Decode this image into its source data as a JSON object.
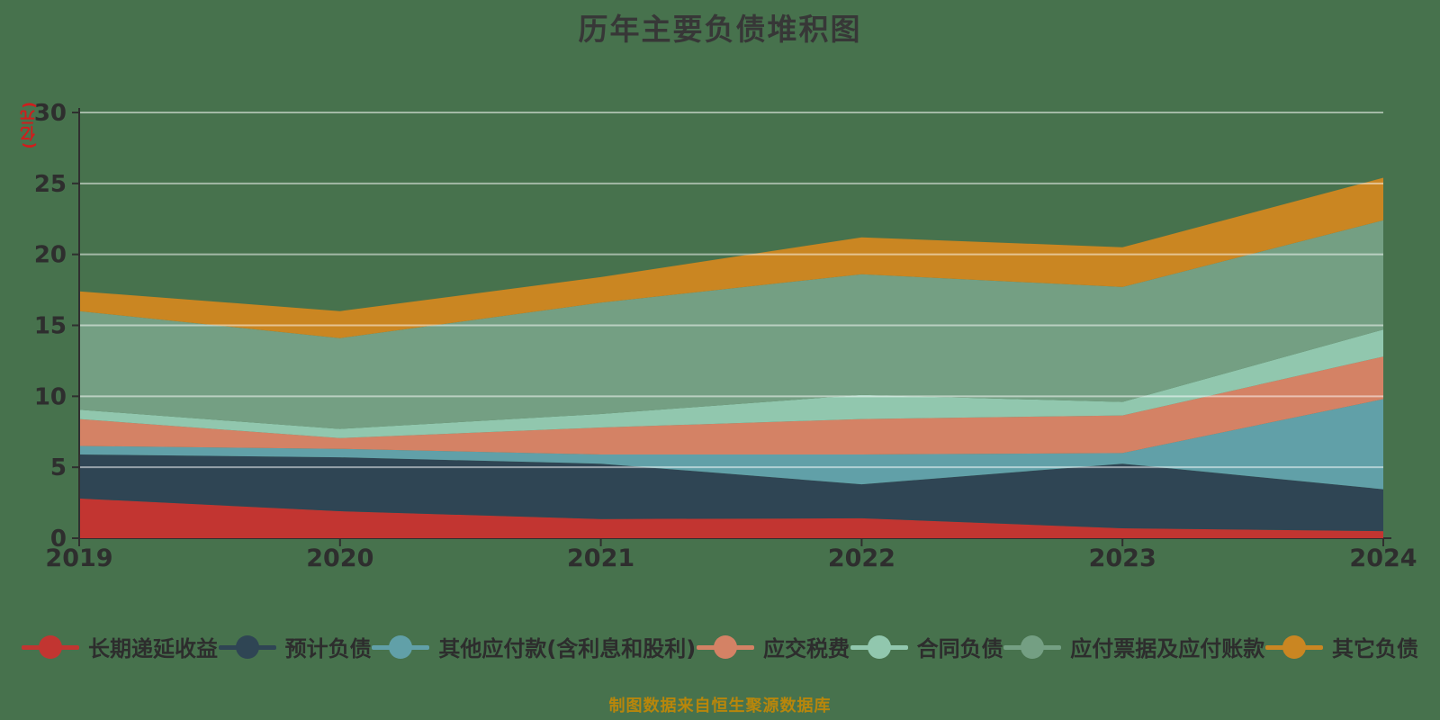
{
  "title": "历年主要负债堆积图",
  "source_note": "制图数据来自恒生聚源数据库",
  "style": {
    "background": "#47724d",
    "grid_color": "rgba(255,255,255,0.5)",
    "axis_color": "#2f2f2f",
    "tick_label_color": "#2e2e2e",
    "title_color": "#373737",
    "y_unit_color": "#d01d1d",
    "note_color": "#b8860b"
  },
  "chart_data": {
    "type": "area",
    "stacked": true,
    "title": "历年主要负债堆积图",
    "xlabel": "",
    "ylabel": "(亿元)",
    "x_labels": [
      "2019",
      "2020",
      "2021",
      "2022",
      "2023",
      "2024"
    ],
    "y_ticks": [
      0,
      5,
      10,
      15,
      20,
      25,
      30
    ],
    "ylim": [
      0,
      30
    ],
    "grid": true,
    "legend_position": "bottom",
    "series": [
      {
        "name": "长期递延收益",
        "color": "#c23531",
        "values": [
          2.8,
          1.9,
          1.35,
          1.4,
          0.7,
          0.5
        ]
      },
      {
        "name": "预计负债",
        "color": "#2f4554",
        "values": [
          3.1,
          3.8,
          3.9,
          2.4,
          4.55,
          2.95
        ]
      },
      {
        "name": "其他应付款(含利息和股利)",
        "color": "#61a0a8",
        "values": [
          0.6,
          0.6,
          0.65,
          2.1,
          0.75,
          6.35
        ]
      },
      {
        "name": "应交税费",
        "color": "#d48265",
        "values": [
          1.9,
          0.75,
          1.9,
          2.5,
          2.65,
          3.0
        ]
      },
      {
        "name": "合同负债",
        "color": "#91c7ae",
        "values": [
          0.65,
          0.65,
          0.95,
          1.7,
          0.95,
          1.9
        ]
      },
      {
        "name": "应付票据及应付账款",
        "color": "#749f83",
        "values": [
          6.95,
          6.4,
          7.85,
          8.5,
          8.1,
          7.7
        ]
      },
      {
        "name": "其它负债",
        "color": "#ca8622",
        "values": [
          1.4,
          1.9,
          1.8,
          2.6,
          2.8,
          3.0
        ]
      }
    ],
    "stack_totals": [
      17.4,
      16.0,
      18.4,
      21.2,
      20.5,
      25.4
    ]
  }
}
